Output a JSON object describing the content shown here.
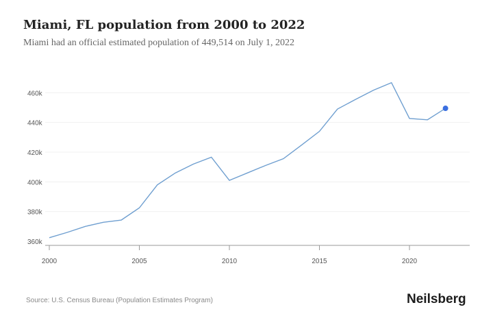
{
  "title": "Miami, FL population from 2000 to 2022",
  "subtitle": "Miami had an official estimated population of 449,514 on July 1, 2022",
  "source": "Source: U.S. Census Bureau (Population Estimates Program)",
  "brand": "Neilsberg",
  "chart_data": {
    "type": "line",
    "title": "Miami, FL population from 2000 to 2022",
    "xlabel": "",
    "ylabel": "",
    "x": [
      2000,
      2001,
      2002,
      2003,
      2004,
      2005,
      2006,
      2007,
      2008,
      2009,
      2010,
      2011,
      2012,
      2013,
      2014,
      2015,
      2016,
      2017,
      2018,
      2019,
      2020,
      2021,
      2022
    ],
    "values": [
      362400,
      366000,
      370000,
      372800,
      374300,
      382500,
      398000,
      406000,
      412000,
      416600,
      401000,
      406000,
      411000,
      415600,
      424700,
      434000,
      449000,
      455500,
      461700,
      466800,
      442700,
      441800,
      449514
    ],
    "xlim": [
      2000,
      2023
    ],
    "ylim": [
      358000,
      468000
    ],
    "x_ticks": [
      "2000",
      "2005",
      "2010",
      "2015",
      "2020"
    ],
    "y_ticks": [
      "360k",
      "380k",
      "400k",
      "420k",
      "440k",
      "460k"
    ],
    "grid": true,
    "line_color": "#6f9fd0",
    "marker_color": "#3b6fe0"
  }
}
